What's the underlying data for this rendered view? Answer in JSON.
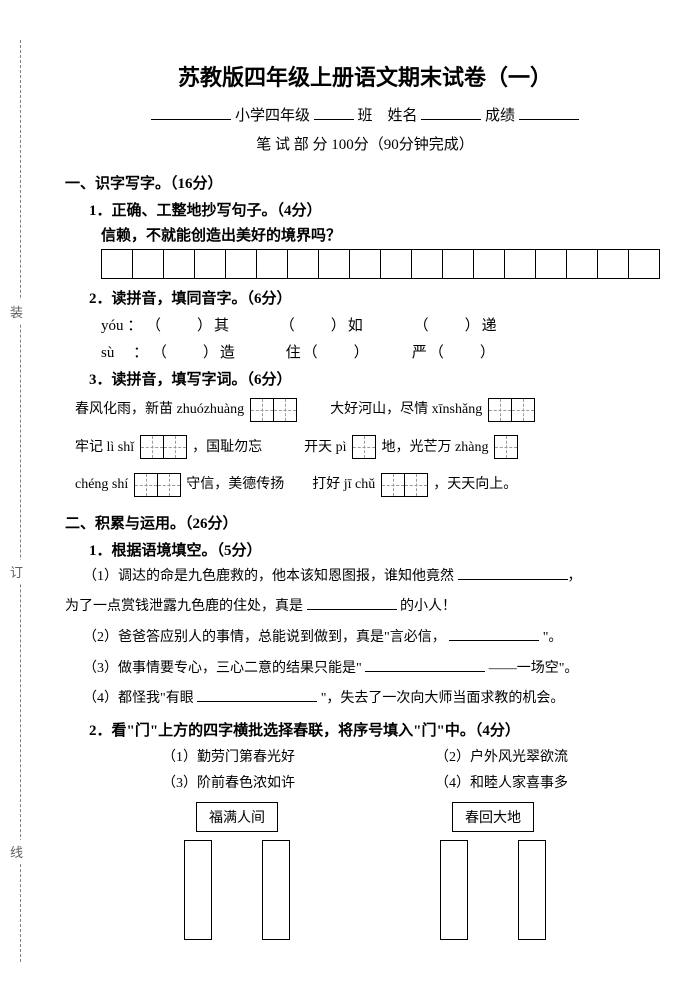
{
  "binding": {
    "top": "装",
    "mid": "订",
    "bot": "线"
  },
  "title": "苏教版四年级上册语文期末试卷（一）",
  "header": {
    "school_label": "小学四年级",
    "class_label": "班　姓名",
    "score_label": "成绩"
  },
  "timing": "笔 试 部 分 100分（90分钟完成）",
  "sec1": {
    "heading": "一、识字写字。（16分）",
    "q1": "1．正确、工整地抄写句子。（4分）",
    "q1_text": "信赖，不就能创造出美好的境界吗？",
    "grid_cells": 18,
    "q2": "2．读拼音，填同音字。（6分）",
    "q2_line1": {
      "pinyin": "yóu ：",
      "a": "（　　）其",
      "b": "（　　）如",
      "c": "（　　）递"
    },
    "q2_line2": {
      "pinyin": "sù　 ：",
      "a": "（　　）造",
      "b": "住（　　）",
      "c": "严（　　）"
    },
    "q3": "3．读拼音，填写字词。（6分）",
    "q3_items": [
      {
        "pre": "春风化雨，新苗 zhuózhuàng",
        "boxes": 2,
        "post": "　　大好河山，尽情 xīnshǎng",
        "boxes2": 2
      },
      {
        "pre": "牢记 lì shǐ",
        "boxes": 2,
        "post": "，国耻勿忘　　　开天 pì",
        "boxes2": 1,
        "tail": "地，光芒万 zhàng",
        "boxes3": 1
      },
      {
        "pre": "chéng shí",
        "boxes": 2,
        "post": "守信，美德传扬　　打好 jī chǔ",
        "boxes2": 2,
        "tail": "，天天向上。"
      }
    ]
  },
  "sec2": {
    "heading": "二、积累与运用。（26分）",
    "q1": "1．根据语境填空。（5分）",
    "q1_items": [
      "（1）调达的命是九色鹿救的，他本该知恩图报，谁知他竟然",
      "为了一点赏钱泄露九色鹿的住处，真是",
      "的小人！",
      "（2）爸爸答应别人的事情，总能说到做到，真是\"言必信，",
      "\"。",
      "（3）做事情要专心，三心二意的结果只能是\"",
      "——一场空\"。",
      "（4）都怪我\"有眼",
      "\"，失去了一次向大师当面求教的机会。"
    ],
    "q2": "2．看\"门\"上方的四字横批选择春联，将序号填入\"门\"中。（4分）",
    "couplets": [
      "（1）勤劳门第春光好",
      "（2）户外风光翠欲流",
      "（3）阶前春色浓如许",
      "（4）和睦人家喜事多"
    ],
    "doors": [
      {
        "top": "福满人间"
      },
      {
        "top": "春回大地"
      }
    ]
  }
}
